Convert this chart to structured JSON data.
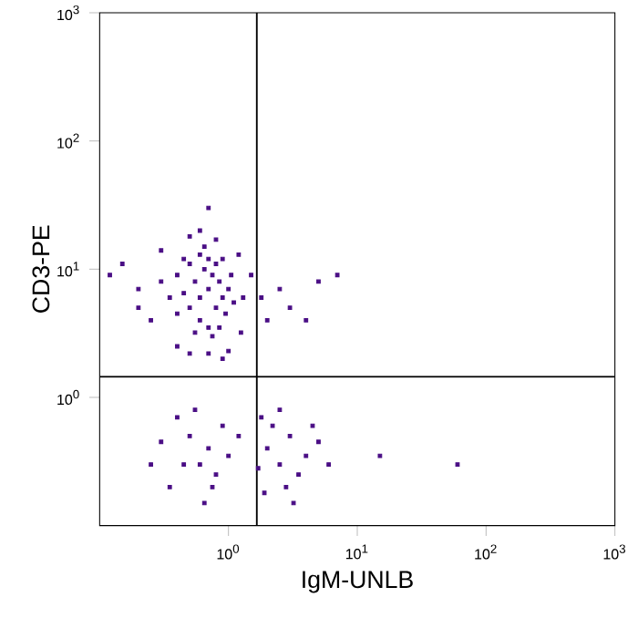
{
  "chart_data": {
    "type": "scatter",
    "xlabel": "IgM-UNLB",
    "ylabel": "CD3-PE",
    "log": "xy",
    "marker": "square",
    "grid": false,
    "legend": false,
    "xlim": [
      0.1,
      1000
    ],
    "ylim": [
      0.1,
      1000
    ],
    "xticks": [
      {
        "value": 1,
        "label": "10$^{0}$"
      },
      {
        "value": 10,
        "label": "10$^{1}$"
      },
      {
        "value": 100,
        "label": "10$^{2}$"
      },
      {
        "value": 1000,
        "label": "10$^{3}$"
      }
    ],
    "yticks": [
      {
        "value": 1,
        "label": "10$^{0}$"
      },
      {
        "value": 10,
        "label": "10$^{1}$"
      },
      {
        "value": 100,
        "label": "10$^{2}$"
      },
      {
        "value": 1000,
        "label": "10$^{3}$"
      }
    ],
    "ref_lines": [
      {
        "axis": "x",
        "value": 1.66,
        "color": "#000000"
      },
      {
        "axis": "y",
        "value": 1.45,
        "color": "#000000"
      }
    ],
    "series": [
      {
        "color": "#4a0e85",
        "x": [
          0.5,
          0.6,
          0.7,
          0.8,
          0.55,
          0.65,
          0.75,
          0.9,
          0.45,
          0.4,
          0.6,
          0.7,
          0.85,
          0.95,
          1.0,
          0.5,
          0.7,
          0.6,
          0.8,
          0.4,
          0.35,
          0.55,
          0.75,
          1.1,
          0.9,
          0.3,
          0.65,
          1.05,
          0.45,
          0.85,
          0.2,
          0.15,
          0.25,
          0.3,
          0.5,
          0.8,
          1.2,
          1.3,
          1.25,
          0.4,
          0.7,
          1.0,
          0.2,
          0.12,
          0.6,
          0.7,
          1.8,
          2.5,
          3,
          5,
          2,
          4,
          7,
          1.5,
          0.9,
          0.5,
          0.5,
          0.7,
          0.9,
          0.6,
          0.8,
          1.0,
          0.4,
          0.3,
          0.55,
          1.2,
          0.75,
          0.45,
          2,
          2.5,
          3,
          3.5,
          2.2,
          4,
          2.8,
          1.8,
          5,
          3.2,
          1.7,
          4.5,
          2.5,
          6,
          1.9,
          0.35,
          0.25,
          15,
          60,
          0.65
        ],
        "values": [
          5,
          6,
          7,
          5,
          8,
          10,
          9,
          6,
          6.5,
          4.5,
          4,
          3.5,
          8,
          4.5,
          7,
          11,
          12,
          13,
          11,
          9,
          6,
          3.2,
          3,
          5.5,
          12,
          8,
          15,
          9,
          12,
          3.5,
          7,
          11,
          4,
          14,
          18,
          17,
          13,
          6,
          3.2,
          2.5,
          2.2,
          2.3,
          5,
          9,
          20,
          30,
          6,
          7,
          5,
          8,
          4,
          4,
          9,
          9,
          2.0,
          2.2,
          0.5,
          0.4,
          0.6,
          0.3,
          0.25,
          0.35,
          0.7,
          0.45,
          0.8,
          0.5,
          0.2,
          0.3,
          0.4,
          0.3,
          0.5,
          0.25,
          0.6,
          0.35,
          0.2,
          0.7,
          0.45,
          0.15,
          0.28,
          0.6,
          0.8,
          0.3,
          0.18,
          0.2,
          0.3,
          0.35,
          0.3,
          0.15
        ]
      }
    ]
  }
}
